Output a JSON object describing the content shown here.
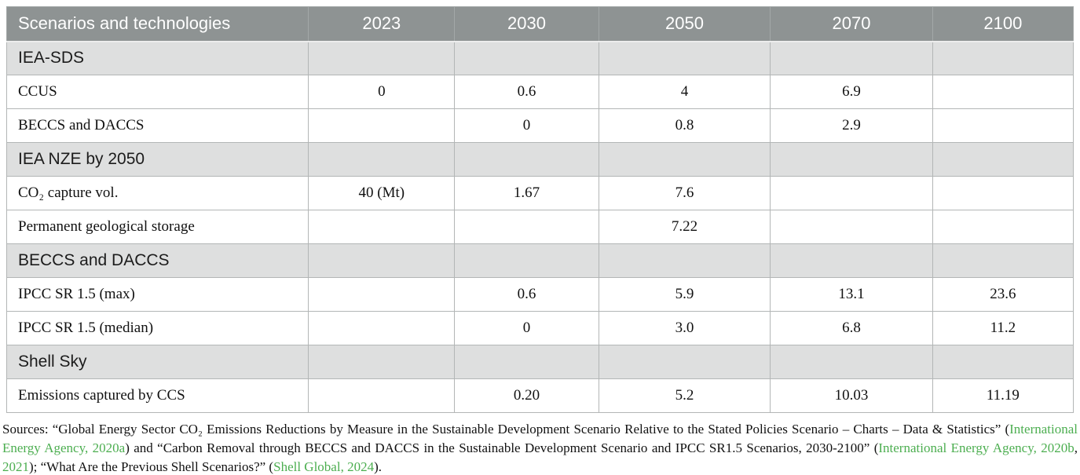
{
  "table": {
    "header_label": "Scenarios and technologies",
    "years": [
      "2023",
      "2030",
      "2050",
      "2070",
      "2100"
    ],
    "rows": [
      {
        "type": "section",
        "label": "IEA-SDS"
      },
      {
        "type": "data",
        "label": "CCUS",
        "values": [
          "0",
          "0.6",
          "4",
          "6.9",
          ""
        ]
      },
      {
        "type": "data",
        "label": "BECCS and DACCS",
        "values": [
          "",
          "0",
          "0.8",
          "2.9",
          ""
        ]
      },
      {
        "type": "section",
        "label": "IEA NZE by 2050"
      },
      {
        "type": "data",
        "label": "CO₂ capture vol.",
        "values": [
          "40 (Mt)",
          "1.67",
          "7.6",
          "",
          ""
        ]
      },
      {
        "type": "data",
        "label": "Permanent geological storage",
        "values": [
          "",
          "",
          "7.22",
          "",
          ""
        ]
      },
      {
        "type": "section",
        "label": "BECCS and DACCS"
      },
      {
        "type": "data",
        "label": "IPCC SR 1.5 (max)",
        "values": [
          "",
          "0.6",
          "5.9",
          "13.1",
          "23.6"
        ]
      },
      {
        "type": "data",
        "label": "IPCC SR 1.5 (median)",
        "values": [
          "",
          "0",
          "3.0",
          "6.8",
          "11.2"
        ]
      },
      {
        "type": "section",
        "label": "Shell Sky"
      },
      {
        "type": "data",
        "label": "Emissions captured by CCS",
        "values": [
          "",
          "0.20",
          "5.2",
          "10.03",
          "11.19"
        ]
      }
    ]
  },
  "footer": {
    "segments": [
      {
        "text": "Sources: “Global Energy Sector CO₂ Emissions Reductions by Measure in the Sustainable Development Scenario Relative to the Stated Policies Scenario – Charts – Data & Statistics” (",
        "link": false
      },
      {
        "text": "International Energy Agency, 2020a",
        "link": true
      },
      {
        "text": ") and “Carbon Removal through BECCS and DACCS in the Sustainable Development Scenario and IPCC SR1.5 Scenarios, 2030-2100” (",
        "link": false
      },
      {
        "text": "International Energy Agency, 2020b",
        "link": true
      },
      {
        "text": ", ",
        "link": false
      },
      {
        "text": "2021",
        "link": true
      },
      {
        "text": "); “What Are the Previous Shell Scenarios?” (",
        "link": false
      },
      {
        "text": "Shell Global, 2024",
        "link": true
      },
      {
        "text": ").",
        "link": false
      }
    ]
  },
  "colors": {
    "header_bg": "#8e9393",
    "header_text": "#ffffff",
    "section_bg": "#dedfdf",
    "grid_border": "#b3b6b6",
    "link_green": "#4cae50"
  }
}
